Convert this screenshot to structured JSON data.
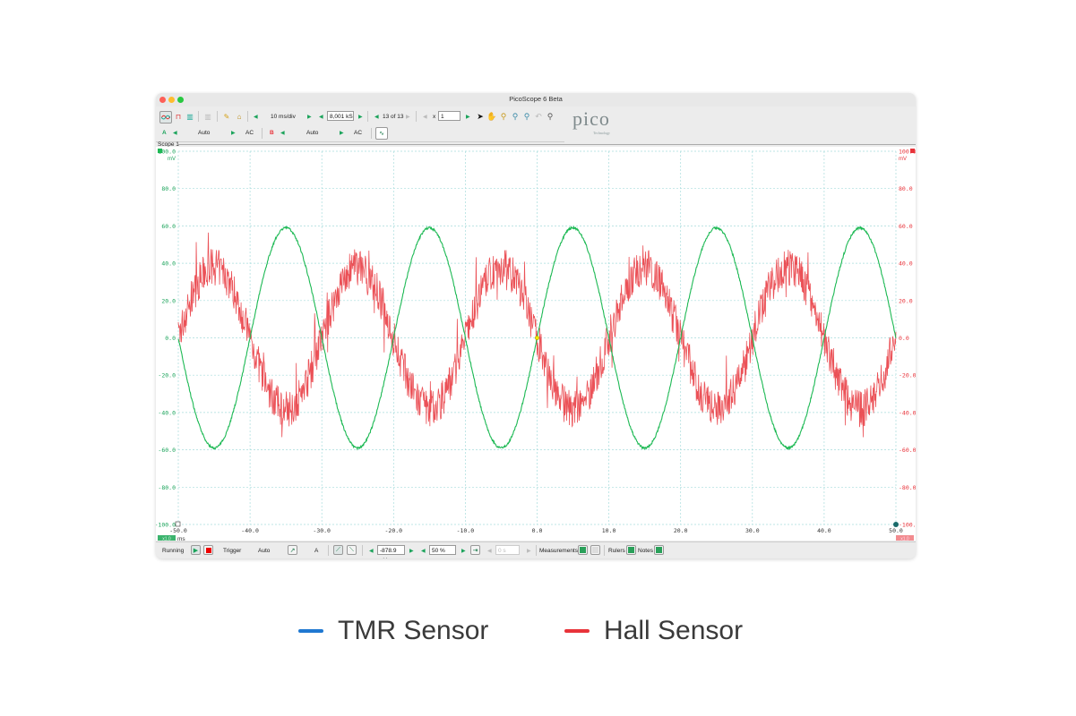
{
  "window": {
    "title": "PicoScope 6 Beta",
    "traffic_lights": {
      "close": "#fd5f57",
      "minimize": "#febc2e",
      "zoom": "#28c840"
    }
  },
  "toolbar": {
    "timebase": "10 ms/div",
    "samples": "8,001 kS",
    "capture_nav": "13 of 13",
    "zoom_factor_label": "x",
    "zoom_factor": "1",
    "tools": [
      "pointer-icon",
      "hand-icon",
      "zoom-in-icon",
      "zoom-out-icon",
      "zoom-area-icon",
      "undo-zoom-icon",
      "zoom-to-fit-icon"
    ]
  },
  "channels": {
    "a": {
      "label": "A",
      "range": "Auto",
      "coupling": "AC",
      "color": "#1db954"
    },
    "b": {
      "label": "B",
      "range": "Auto",
      "coupling": "AC",
      "color": "#e8333a"
    }
  },
  "logo": {
    "text": "pico",
    "subtext": "Technology"
  },
  "scope": {
    "tab_label": "Scope 1",
    "left_axis_unit": "mV",
    "right_axis_unit": "mV",
    "x_unit": "ms",
    "x_scale_badge_left": "x1.0",
    "x_scale_badge_right": "x1.0",
    "left_axis_color": "#1aa35a",
    "right_axis_color": "#e8333a",
    "grid_color": "#a7dcdc"
  },
  "status": {
    "state": "Running",
    "trigger_label": "Trigger",
    "trigger_mode": "Auto",
    "trigger_source": "A",
    "threshold": "-878.9 µV",
    "pre_trigger": "50 %",
    "delay": "0 s",
    "measurements_label": "Measurements",
    "rulers_label": "Rulers",
    "notes_label": "Notes"
  },
  "legend": {
    "items": [
      {
        "label": "TMR Sensor",
        "color": "#1f78d1"
      },
      {
        "label": "Hall Sensor",
        "color": "#e8333a"
      }
    ]
  },
  "chart_data": {
    "type": "line",
    "title": "Scope 1",
    "xlabel": "ms",
    "ylabel": "mV",
    "xlim": [
      -50,
      50
    ],
    "ylim": [
      -100,
      100
    ],
    "x_ticks": [
      -50,
      -40,
      -30,
      -20,
      -10,
      0,
      10,
      20,
      30,
      40,
      50
    ],
    "y_ticks": [
      100,
      80,
      60,
      40,
      20,
      0,
      -20,
      -40,
      -60,
      -80,
      -100
    ],
    "x_tick_labels": [
      "-50.0",
      "-40.0",
      "-30.0",
      "-20.0",
      "-10.0",
      "0.0",
      "10.0",
      "20.0",
      "30.0",
      "40.0",
      "50.0"
    ],
    "y_tick_labels": [
      "100.0",
      "80.0",
      "60.0",
      "40.0",
      "20.0",
      "0.0",
      "-20.0",
      "-40.0",
      "-60.0",
      "-80.0",
      "-100.0"
    ],
    "grid": true,
    "series": [
      {
        "name": "Channel A (TMR Sensor)",
        "color": "#1db954",
        "shape": "sine",
        "amplitude_mV": 59,
        "period_ms": 20,
        "phase": "rising zero crossing at 0 ms",
        "x": [
          -50,
          -45,
          -40,
          -35,
          -30,
          -25,
          -20,
          -15,
          -10,
          -5,
          0,
          5,
          10,
          15,
          20,
          25,
          30,
          35,
          40,
          45,
          50
        ],
        "values": [
          0,
          -59,
          0,
          59,
          0,
          -59,
          0,
          59,
          0,
          -59,
          0,
          59,
          0,
          -59,
          0,
          59,
          0,
          -59,
          0,
          59,
          0
        ]
      },
      {
        "name": "Channel B (Hall Sensor)",
        "color": "#e8333a",
        "shape": "noisy sine",
        "amplitude_mV": 38,
        "noise_mV": 10,
        "period_ms": 20,
        "phase": "inverted relative to channel A",
        "x": [
          -50,
          -45,
          -40,
          -35,
          -30,
          -25,
          -20,
          -15,
          -10,
          -5,
          0,
          5,
          10,
          15,
          20,
          25,
          30,
          35,
          40,
          45,
          50
        ],
        "values": [
          0,
          38,
          0,
          -38,
          0,
          38,
          0,
          -38,
          0,
          38,
          0,
          -38,
          0,
          38,
          0,
          -38,
          0,
          38,
          0,
          -38,
          0
        ]
      }
    ],
    "legend": [
      "TMR Sensor",
      "Hall Sensor"
    ],
    "legend_position": "bottom"
  }
}
